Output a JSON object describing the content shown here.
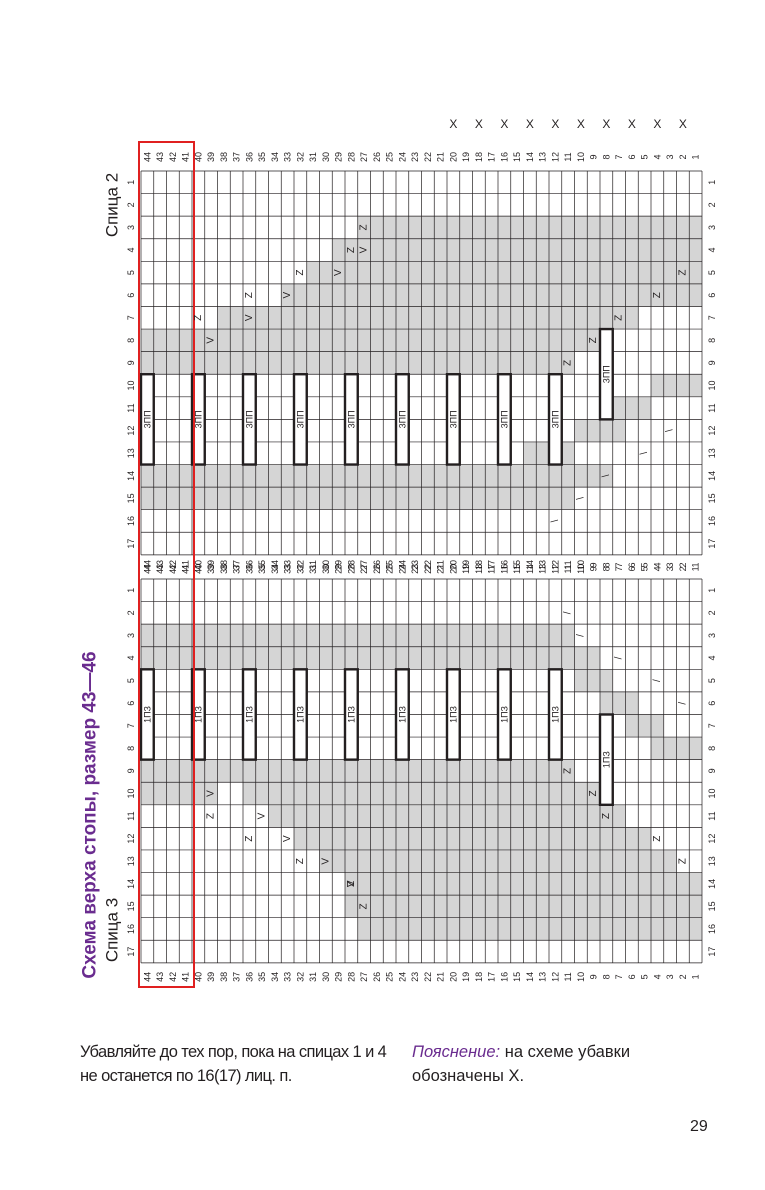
{
  "page": {
    "title": "Схема верха стопы, размер 43—46",
    "needle_top_label": "Спица 2",
    "needle_bottom_label": "Спица 3",
    "instruction_text": "Убавляйте до тех пор, пока на спицах 1 и 4 не останется по 16(17) лиц. п.",
    "legend_term": "Пояснение:",
    "legend_text": "на схеме убавки обозначены Х.",
    "page_number": "29"
  },
  "colors": {
    "grid_line": "#231f20",
    "shade": "#d5d5d5",
    "highlight_frame": "#e02020",
    "title": "#6a2c8f"
  },
  "chart_data": {
    "type": "table",
    "total_rows": 44,
    "row_numbers": [
      "44",
      "43",
      "42",
      "41",
      "40",
      "39",
      "38",
      "37",
      "36",
      "35",
      "34",
      "33",
      "32",
      "31",
      "30",
      "29",
      "28",
      "27",
      "26",
      "25",
      "24",
      "23",
      "22",
      "21",
      "20",
      "19",
      "18",
      "17",
      "16",
      "15",
      "14",
      "13",
      "12",
      "11",
      "10",
      "9",
      "8",
      "7",
      "6",
      "5",
      "4",
      "3",
      "2",
      "1"
    ],
    "highlighted_rows": [
      "44",
      "43",
      "42",
      "41"
    ],
    "decrease_marker": "X",
    "decrease_rows": [
      "20",
      "18",
      "16",
      "14",
      "12",
      "10",
      "8",
      "6",
      "4",
      "2"
    ],
    "needle_2": {
      "label": "Спица 2",
      "stitches": 17,
      "column_labels": [
        "1",
        "2",
        "3",
        "4",
        "5",
        "6",
        "7",
        "8",
        "9",
        "10",
        "11",
        "12",
        "13",
        "14",
        "15",
        "16",
        "17"
      ],
      "cable_label": "3ПП",
      "cable_rows": [
        "44",
        "40",
        "36",
        "32",
        "28",
        "24",
        "20",
        "16",
        "12",
        "8"
      ],
      "stitch_symbols": {
        "twist_right": "Z",
        "twist_left": "V",
        "slant": "\\"
      }
    },
    "needle_3": {
      "label": "Спица 3",
      "stitches": 17,
      "column_labels": [
        "1",
        "2",
        "3",
        "4",
        "5",
        "6",
        "7",
        "8",
        "9",
        "10",
        "11",
        "12",
        "13",
        "14",
        "15",
        "16",
        "17"
      ],
      "cable_label": "1ПЗ",
      "cable_rows": [
        "44",
        "40",
        "36",
        "32",
        "28",
        "24",
        "20",
        "16",
        "12",
        "8"
      ],
      "stitch_symbols": {
        "twist_right": "Z",
        "twist_left": "V",
        "slant": "/"
      }
    }
  }
}
